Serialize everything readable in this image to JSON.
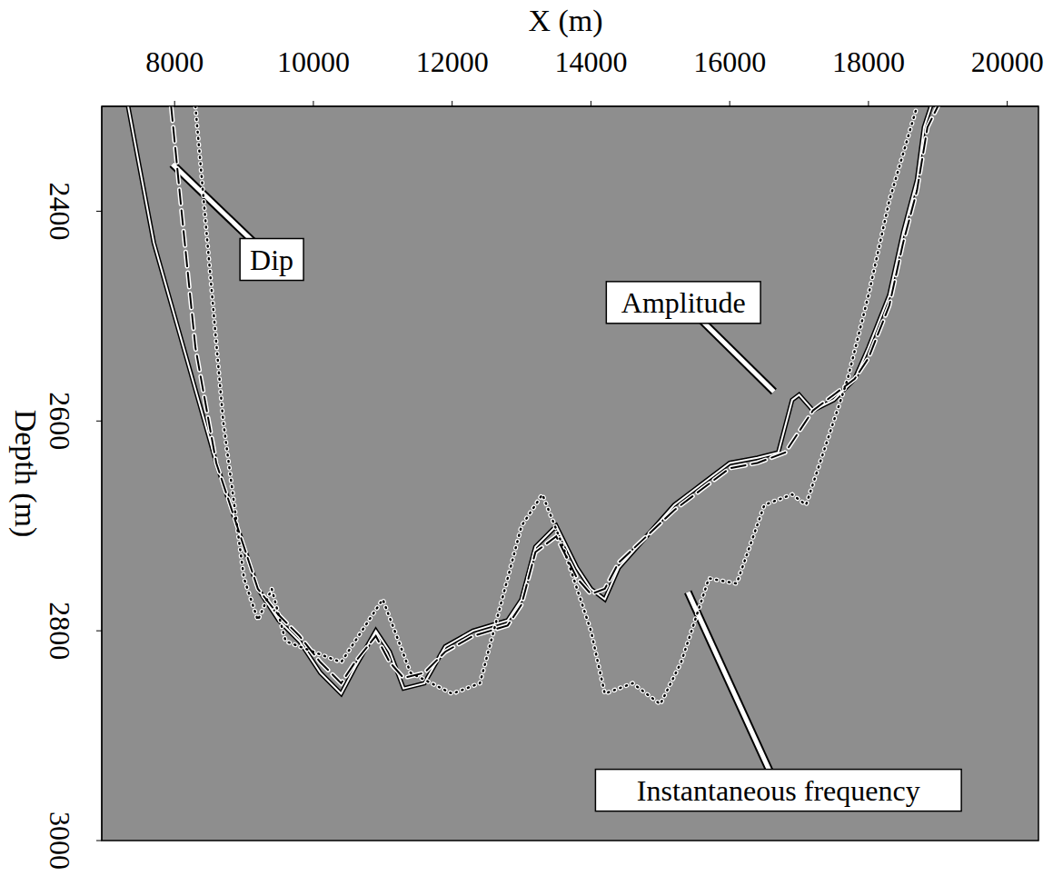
{
  "chart_data": {
    "type": "line",
    "x_label": "X (m)",
    "y_label": "Depth (m)",
    "xlim": [
      6950,
      20450
    ],
    "xticks": [
      8000,
      10000,
      12000,
      14000,
      16000,
      18000,
      20000
    ],
    "ylim": [
      2300,
      3000
    ],
    "yticks": [
      2400,
      2600,
      2800,
      3000
    ],
    "series": [
      {
        "name": "Amplitude",
        "color": "white",
        "line_style": "solid",
        "x": [
          7330,
          7500,
          7700,
          8000,
          8300,
          8600,
          8900,
          9200,
          9500,
          9800,
          10100,
          10400,
          10600,
          10900,
          11100,
          11300,
          11600,
          11900,
          12300,
          12800,
          13000,
          13200,
          13500,
          13800,
          14000,
          14200,
          14400,
          14800,
          15200,
          15600,
          16000,
          16400,
          16700,
          16900,
          17000,
          17200,
          17500,
          17800,
          18000,
          18300,
          18500,
          18700,
          18800,
          18900
        ],
        "values": [
          2300,
          2360,
          2430,
          2500,
          2570,
          2640,
          2700,
          2760,
          2790,
          2810,
          2840,
          2860,
          2835,
          2800,
          2820,
          2855,
          2850,
          2815,
          2800,
          2790,
          2770,
          2720,
          2700,
          2740,
          2760,
          2770,
          2740,
          2710,
          2680,
          2660,
          2640,
          2635,
          2630,
          2580,
          2575,
          2590,
          2580,
          2560,
          2530,
          2480,
          2420,
          2370,
          2320,
          2300
        ]
      },
      {
        "name": "Dip",
        "color": "black",
        "line_style": "dashed",
        "x": [
          7950,
          8100,
          8300,
          8600,
          8900,
          9200,
          9500,
          9800,
          10100,
          10400,
          10600,
          10900,
          11100,
          11300,
          11600,
          11900,
          12300,
          12800,
          13000,
          13200,
          13500,
          13800,
          14000,
          14200,
          14400,
          14800,
          15200,
          15600,
          16000,
          16400,
          16800,
          17200,
          17500,
          17800,
          18000,
          18300,
          18500,
          18700,
          18850,
          19000
        ],
        "values": [
          2300,
          2400,
          2530,
          2640,
          2700,
          2760,
          2785,
          2805,
          2830,
          2850,
          2830,
          2805,
          2830,
          2845,
          2840,
          2820,
          2805,
          2795,
          2775,
          2725,
          2710,
          2750,
          2765,
          2760,
          2735,
          2710,
          2685,
          2665,
          2645,
          2640,
          2630,
          2590,
          2575,
          2560,
          2540,
          2490,
          2430,
          2380,
          2320,
          2300
        ]
      },
      {
        "name": "Instantaneous frequency",
        "color": "black",
        "line_style": "dotted",
        "x": [
          8300,
          8500,
          8700,
          9000,
          9200,
          9400,
          9600,
          10000,
          10400,
          11000,
          11400,
          12000,
          12400,
          13000,
          13300,
          13600,
          14000,
          14200,
          14600,
          15000,
          15300,
          15700,
          16100,
          16500,
          16900,
          17100,
          17400,
          17700,
          18000,
          18300,
          18700
        ],
        "values": [
          2300,
          2450,
          2600,
          2750,
          2790,
          2760,
          2810,
          2820,
          2830,
          2770,
          2840,
          2860,
          2850,
          2700,
          2670,
          2720,
          2800,
          2860,
          2850,
          2870,
          2830,
          2750,
          2755,
          2680,
          2670,
          2680,
          2620,
          2560,
          2480,
          2390,
          2300
        ]
      }
    ],
    "annotations": [
      {
        "text": "Dip",
        "x": 9400,
        "y": 2446,
        "arrow_x": 7967,
        "arrow_y": 2355
      },
      {
        "text": "Amplitude",
        "x": 15333,
        "y": 2487,
        "arrow_x": 16637,
        "arrow_y": 2572
      },
      {
        "text": "Instantaneous frequency",
        "x": 16702,
        "y": 2952,
        "arrow_x": 15398,
        "arrow_y": 2763
      }
    ]
  }
}
